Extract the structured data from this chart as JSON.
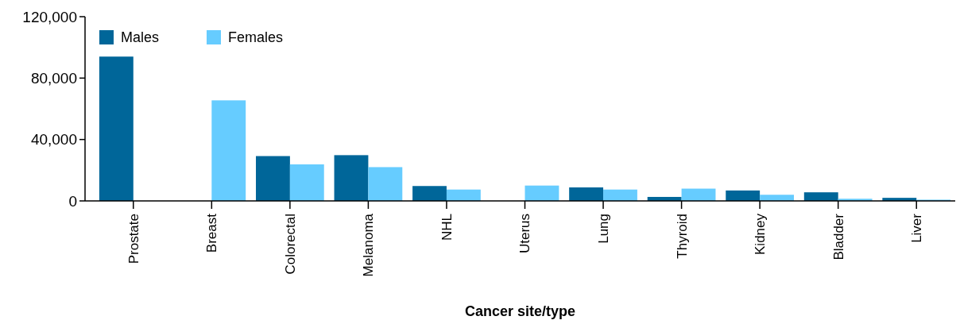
{
  "chart_data": {
    "type": "bar",
    "xlabel": "Cancer site/type",
    "categories": [
      "Prostate",
      "Breast",
      "Colorectal",
      "Melanoma",
      "NHL",
      "Uterus",
      "Lung",
      "Thyroid",
      "Kidney",
      "Bladder",
      "Liver"
    ],
    "series": [
      {
        "name": "Males",
        "color": "#006699",
        "values": [
          94000,
          null,
          29200,
          29800,
          9700,
          null,
          8800,
          2600,
          6800,
          5600,
          2000
        ]
      },
      {
        "name": "Females",
        "color": "#66ccff",
        "values": [
          null,
          65500,
          23800,
          22000,
          7400,
          10000,
          7400,
          8000,
          4000,
          1400,
          800
        ]
      }
    ],
    "ylim": [
      0,
      120000
    ],
    "yticks": [
      {
        "value": 0,
        "label": "0"
      },
      {
        "value": 40000,
        "label": "40,000"
      },
      {
        "value": 80000,
        "label": "80,000"
      },
      {
        "value": 120000,
        "label": "120,000"
      }
    ],
    "grid": false,
    "legend": "top left"
  }
}
